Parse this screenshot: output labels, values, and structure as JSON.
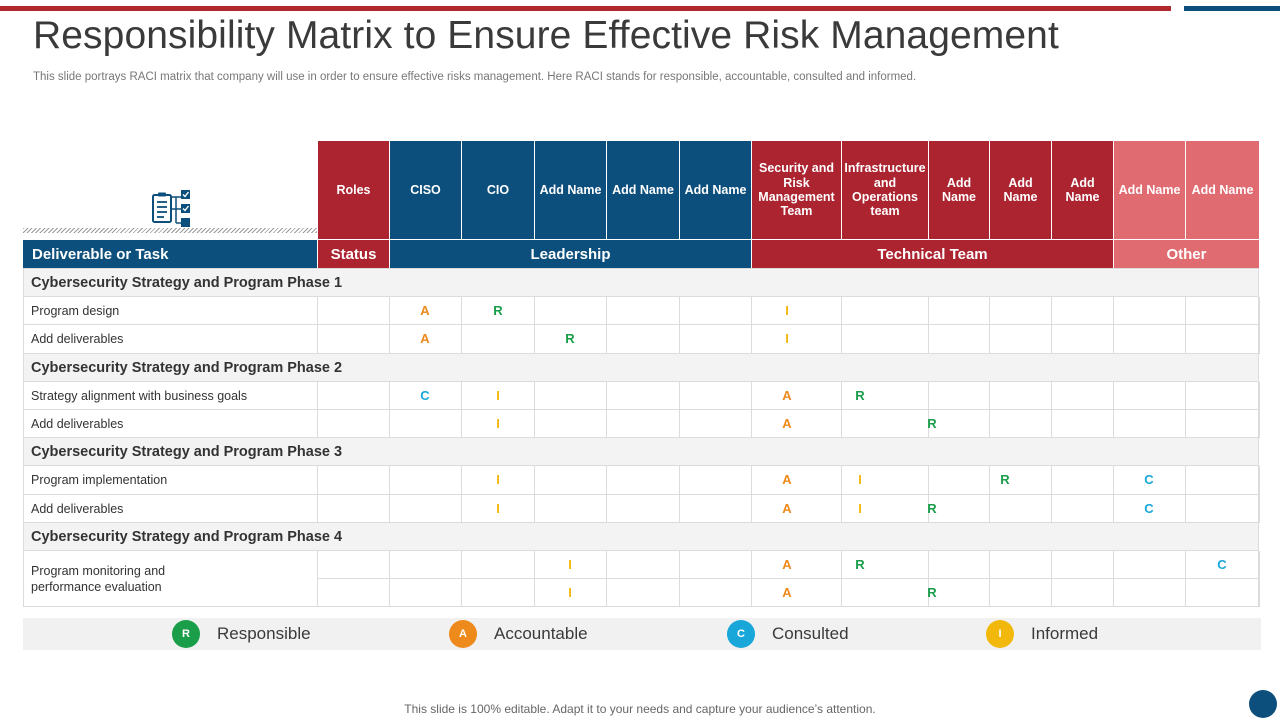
{
  "slide": {
    "title": "Responsibility Matrix to Ensure Effective Risk Management",
    "subtitle": "This slide portrays RACI matrix that company will use in order to ensure effective risks management. Here RACI stands for responsible, accountable, consulted and informed.",
    "footer": "This slide is 100% editable. Adapt it to your needs and capture your audience’s attention."
  },
  "colors": {
    "red": "#ab2430",
    "blue": "#0d4f7c",
    "pink": "#e06b71",
    "responsible": "#1a9e4a",
    "accountable": "#ee8a1c",
    "consulted": "#18a7d8",
    "informed": "#f2b90c"
  },
  "icon": "clipboard-checklist-icon",
  "columns": [
    {
      "label": "Roles",
      "group": "red"
    },
    {
      "label": "CISO",
      "group": "blue"
    },
    {
      "label": "CIO",
      "group": "blue"
    },
    {
      "label": "Add Name",
      "group": "blue"
    },
    {
      "label": "Add Name",
      "group": "blue"
    },
    {
      "label": "Add Name",
      "group": "blue"
    },
    {
      "label": "Security and Risk Management Team",
      "group": "red"
    },
    {
      "label": "Infrastructure and Operations team",
      "group": "red"
    },
    {
      "label": "Add Name",
      "group": "red"
    },
    {
      "label": "Add Name",
      "group": "red"
    },
    {
      "label": "Add Name",
      "group": "red"
    },
    {
      "label": "Add Name",
      "group": "pink"
    },
    {
      "label": "Add Name",
      "group": "pink"
    }
  ],
  "groups": {
    "task": "Deliverable or Task",
    "status": "Status",
    "leadership": "Leadership",
    "technical": "Technical Team",
    "other": "Other"
  },
  "phases": [
    {
      "title": "Cybersecurity Strategy and Program Phase 1",
      "tasks": [
        {
          "label": "Program design",
          "marks": {
            "1": "A",
            "2": "R",
            "6": "I"
          }
        },
        {
          "label": "Add deliverables",
          "marks": {
            "1": "A",
            "3": "R",
            "6": "I"
          }
        }
      ]
    },
    {
      "title": "Cybersecurity Strategy and Program Phase 2",
      "tasks": [
        {
          "label": "Strategy alignment with business goals",
          "marks": {
            "1": "C",
            "2": "I",
            "6": "A",
            "7": "R"
          }
        },
        {
          "label": "Add deliverables",
          "marks": {
            "2": "I",
            "6": "A",
            "8": "R"
          }
        }
      ]
    },
    {
      "title": "Cybersecurity Strategy and Program Phase 3",
      "tasks": [
        {
          "label": "Program implementation",
          "marks": {
            "2": "I",
            "6": "A",
            "7": "I",
            "9": "R",
            "11": "C"
          }
        },
        {
          "label": "Add deliverables",
          "marks": {
            "2": "I",
            "6": "A",
            "7": "I",
            "8": "R",
            "11": "C"
          }
        }
      ]
    },
    {
      "title": "Cybersecurity Strategy and Program Phase 4",
      "merged_label": "Program monitoring and performance  evaluation",
      "tasks": [
        {
          "label": "",
          "marks": {
            "3": "I",
            "6": "A",
            "7": "R",
            "12": "C"
          }
        },
        {
          "label": "",
          "marks": {
            "3": "I",
            "6": "A",
            "8": "R"
          }
        }
      ]
    }
  ],
  "legend": [
    {
      "letter": "R",
      "label": "Responsible",
      "color": "#1a9e4a"
    },
    {
      "letter": "A",
      "label": "Accountable",
      "color": "#ee8a1c"
    },
    {
      "letter": "C",
      "label": "Consulted",
      "color": "#18a7d8"
    },
    {
      "letter": "I",
      "label": "Informed",
      "color": "#f2b90c"
    }
  ]
}
